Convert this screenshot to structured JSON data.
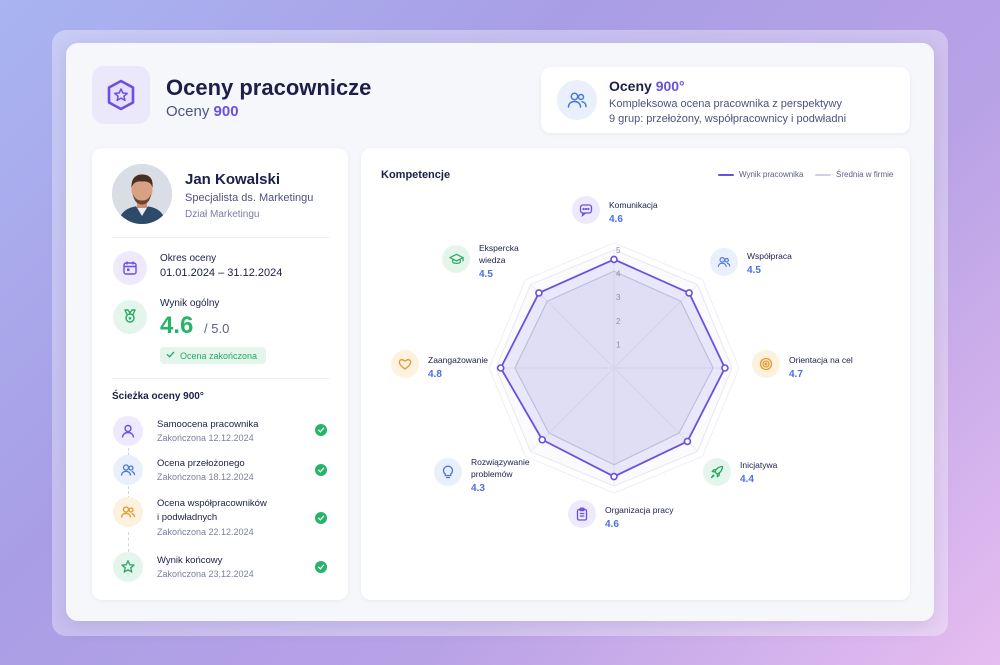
{
  "header": {
    "title": "Oceny pracownicze",
    "subtitle_prefix": "Oceny",
    "subtitle_accent": "900",
    "logo_icon": "shield-star-icon"
  },
  "info": {
    "title_prefix": "Oceny",
    "title_accent": "900°",
    "line1": "Kompleksowa ocena pracownika z perspektywy",
    "line2": "9 grup: przełożony, współpracownicy i podwładni",
    "icon": "users-icon"
  },
  "employee": {
    "name": "Jan Kowalski",
    "role": "Specjalista ds. Marketingu",
    "department": "Dział Marketingu"
  },
  "period": {
    "label": "Okres oceny",
    "value": "01.01.2024 – 31.12.2024"
  },
  "overall": {
    "label": "Wynik ogólny",
    "score": "4.6",
    "max": "/ 5.0",
    "badge": "Ocena zakończona"
  },
  "path": {
    "title": "Ścieżka oceny 900°",
    "steps": [
      {
        "name": "Samoocena pracownika",
        "date": "Zakończona 12.12.2024",
        "icon": "user-icon"
      },
      {
        "name": "Ocena przełożonego",
        "date": "Zakończona 18.12.2024",
        "icon": "users-icon"
      },
      {
        "name": "Ocena współpracowników",
        "name2": "i podwładnych",
        "date": "Zakończona 22.12.2024",
        "icon": "team-icon"
      },
      {
        "name": "Wynik końcowy",
        "date": "Zakończona 23.12.2024",
        "icon": "star-icon"
      }
    ]
  },
  "competencies": {
    "title": "Kompetencje",
    "legend_employee": "Wynik pracownika",
    "legend_average": "Średnia w firmie",
    "items": [
      {
        "label": "Komunikacja",
        "value": "4.6",
        "icon": "chat-icon"
      },
      {
        "label": "Współpraca",
        "value": "4.5",
        "icon": "people-icon"
      },
      {
        "label": "Orientacja na cel",
        "value": "4.7",
        "icon": "target-icon"
      },
      {
        "label": "Inicjatywa",
        "value": "4.4",
        "icon": "rocket-icon"
      },
      {
        "label": "Organizacja pracy",
        "value": "4.6",
        "icon": "clipboard-icon"
      },
      {
        "label": "Rozwiązywanie",
        "label2": "problemów",
        "value": "4.3",
        "icon": "lightbulb-icon"
      },
      {
        "label": "Zaangażowanie",
        "value": "4.8",
        "icon": "heart-icon"
      },
      {
        "label": "Ekspercka",
        "label2": "wiedza",
        "value": "4.5",
        "icon": "graduation-cap-icon"
      }
    ]
  },
  "chart_data": {
    "type": "radar",
    "categories": [
      "Komunikacja",
      "Współpraca",
      "Orientacja na cel",
      "Inicjatywa",
      "Organizacja pracy",
      "Rozwiązywanie problemów",
      "Zaangażowanie",
      "Ekspercka wiedza"
    ],
    "series": [
      {
        "name": "Wynik pracownika",
        "values": [
          4.6,
          4.5,
          4.7,
          4.4,
          4.6,
          4.3,
          4.8,
          4.5
        ],
        "color": "#6d4fe0"
      },
      {
        "name": "Średnia w firmie",
        "values": [
          4.1,
          4.0,
          4.2,
          3.9,
          4.1,
          3.9,
          4.2,
          4.0
        ],
        "color": "#c9cbe0"
      }
    ],
    "rmax": 5,
    "ticks": [
      "1",
      "2",
      "3",
      "4",
      "5"
    ]
  }
}
